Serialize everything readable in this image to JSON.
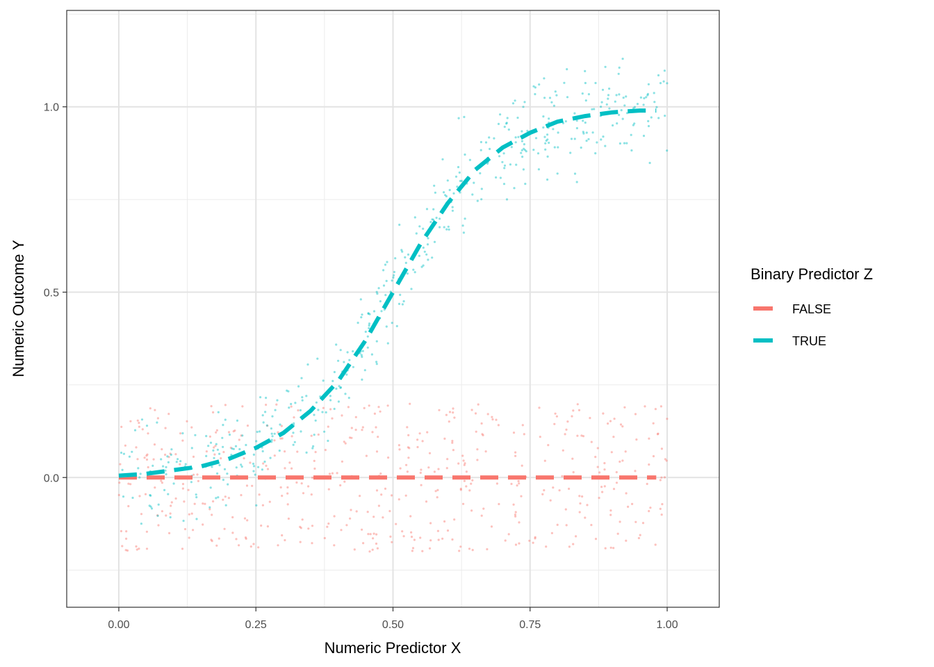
{
  "chart_data": {
    "type": "scatter",
    "title": "",
    "xlabel": "Numeric Predictor X",
    "ylabel": "Numeric Outcome Y",
    "xlim": [
      -0.095,
      1.095
    ],
    "ylim": [
      -0.35,
      1.26
    ],
    "x_ticks": [
      {
        "value": 0,
        "label": "0.00"
      },
      {
        "value": 0.25,
        "label": "0.25"
      },
      {
        "value": 0.5,
        "label": "0.50"
      },
      {
        "value": 0.75,
        "label": "0.75"
      },
      {
        "value": 1,
        "label": "1.00"
      }
    ],
    "y_ticks": [
      {
        "value": 0,
        "label": "0.0"
      },
      {
        "value": 0.5,
        "label": "0.5"
      },
      {
        "value": 1,
        "label": "1.0"
      }
    ],
    "grid": true,
    "legend": {
      "title": "Binary Predictor Z",
      "placement": "right",
      "entries": [
        {
          "label": "FALSE",
          "color": "#f8766d"
        },
        {
          "label": "TRUE",
          "color": "#00bfc4"
        }
      ]
    },
    "series": [
      {
        "name": "FALSE",
        "color": "#f8766d",
        "line_style": "dashed",
        "fit": {
          "x": [
            0,
            0.25,
            0.5,
            0.75,
            0.98
          ],
          "y": [
            0,
            0,
            0,
            0,
            0
          ]
        },
        "points": {
          "x_range": [
            0,
            1
          ],
          "y_center": 0,
          "y_spread": 0.2,
          "count": 500
        }
      },
      {
        "name": "TRUE",
        "color": "#00bfc4",
        "line_style": "dashed",
        "fit": {
          "x": [
            0,
            0.05,
            0.1,
            0.15,
            0.2,
            0.25,
            0.3,
            0.35,
            0.4,
            0.45,
            0.5,
            0.55,
            0.6,
            0.65,
            0.7,
            0.75,
            0.8,
            0.85,
            0.9,
            0.95,
            0.98
          ],
          "y": [
            0.005,
            0.01,
            0.02,
            0.03,
            0.05,
            0.08,
            0.12,
            0.18,
            0.26,
            0.37,
            0.5,
            0.63,
            0.74,
            0.83,
            0.89,
            0.93,
            0.96,
            0.975,
            0.985,
            0.99,
            0.99
          ]
        },
        "points": {
          "x_range": [
            0,
            1
          ],
          "y_spread": 0.13,
          "count": 500
        }
      }
    ]
  }
}
